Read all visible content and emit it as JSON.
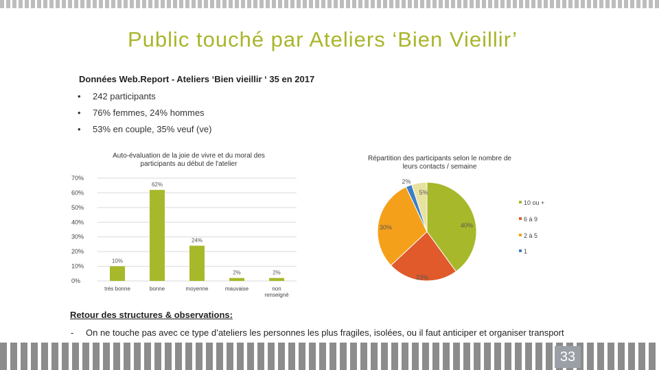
{
  "slide": {
    "title": "Public  touché  par  Ateliers  ‘Bien  Vieillir’",
    "subtitle": "Données Web.Report - Ateliers  ‘Bien  vieillir ‘ 35  en  2017",
    "bullets": [
      "242 participants",
      "76% femmes, 24% hommes",
      "53% en couple, 35% veuf (ve)"
    ],
    "bullet_glyph": "•",
    "notes_title": "Retour  des structures & observations:",
    "notes_dash": "-",
    "notes_text": "On ne touche pas avec ce type d’ateliers les personnes les plus fragiles, isolées, ou il faut anticiper et organiser transport",
    "page_number": "33"
  },
  "chart_data": [
    {
      "type": "bar",
      "title": "Auto-évaluation de la joie de vivre et du moral des participants au début de l'atelier",
      "categories": [
        "très bonne",
        "bonne",
        "moyenne",
        "mauvaise",
        "non renseigné"
      ],
      "values": [
        10,
        62,
        24,
        2,
        2
      ],
      "data_labels": [
        "10%",
        "62%",
        "24%",
        "2%",
        "2%"
      ],
      "ylim": [
        0,
        70
      ],
      "yticks": [
        "0%",
        "10%",
        "20%",
        "30%",
        "40%",
        "50%",
        "60%",
        "70%"
      ],
      "grid": true,
      "color": "#a7b82a"
    },
    {
      "type": "pie",
      "title": "Répartition des participants selon le nombre de leurs contacts / semaine",
      "legend_position": "right",
      "slices": [
        {
          "name": "10  ou  +",
          "value": 40,
          "label": "40%",
          "color": "#a7b82a"
        },
        {
          "name": "6  à  9",
          "value": 23,
          "label": "23%",
          "color": "#e05a2b"
        },
        {
          "name": "2  à  5",
          "value": 30,
          "label": "30%",
          "color": "#f5a01a"
        },
        {
          "name": "1",
          "value": 2,
          "label": "2%",
          "color": "#3b7fc4"
        },
        {
          "name": "",
          "value": 5,
          "label": "5%",
          "color": "#e8e2a0"
        }
      ]
    }
  ]
}
